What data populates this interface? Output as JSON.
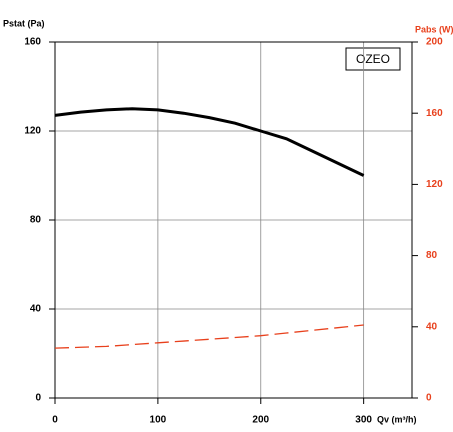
{
  "chart_data": {
    "type": "line",
    "y_label": "Pstat (Pa)",
    "y2_label": "Pabs (W)",
    "x_label": "Qv (m³/h)",
    "annotation": "OZEO",
    "x": [
      0,
      25,
      50,
      75,
      100,
      125,
      150,
      175,
      200,
      225,
      250,
      275,
      300
    ],
    "series": [
      {
        "name": "Pstat",
        "color": "#000000",
        "linestyle": "solid",
        "values": [
          127,
          128.5,
          129.5,
          130,
          129.5,
          128,
          126,
          123.5,
          120,
          116.5,
          111,
          105.5,
          100
        ]
      },
      {
        "name": "Pabs",
        "color": "#e8401c",
        "linestyle": "dashed",
        "axis": "y2",
        "values": [
          28,
          28.5,
          29,
          30,
          31,
          32,
          33,
          34,
          35,
          36.5,
          38,
          39.5,
          41
        ]
      }
    ],
    "xlim": [
      0,
      347
    ],
    "xticks": [
      0,
      100,
      200,
      300
    ],
    "ylim": [
      0,
      160
    ],
    "yticks": [
      0,
      40,
      80,
      120,
      160
    ],
    "y2lim": [
      0,
      200
    ],
    "y2ticks": [
      0,
      40,
      80,
      120,
      160,
      200
    ],
    "y2color": "#e8401c",
    "grid": true
  }
}
